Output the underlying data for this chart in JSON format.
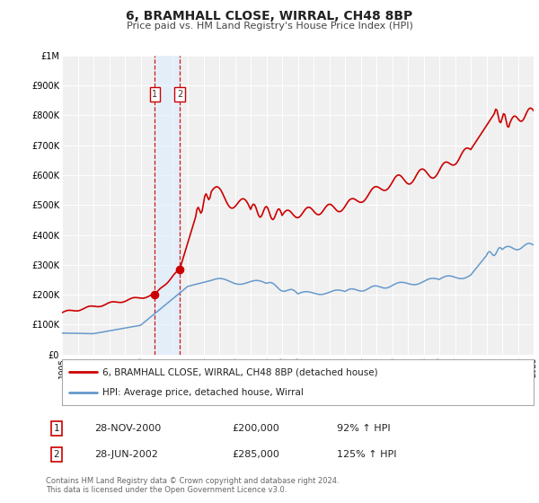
{
  "title": "6, BRAMHALL CLOSE, WIRRAL, CH48 8BP",
  "subtitle": "Price paid vs. HM Land Registry's House Price Index (HPI)",
  "background_color": "#ffffff",
  "plot_bg_color": "#f0f0f0",
  "grid_color": "#ffffff",
  "red_line_color": "#cc0000",
  "blue_line_color": "#6699cc",
  "sale1_date_num": 2000.91,
  "sale1_price": 200000,
  "sale1_label": "28-NOV-2000",
  "sale1_hpi": "92% ↑ HPI",
  "sale2_date_num": 2002.49,
  "sale2_price": 285000,
  "sale2_label": "28-JUN-2002",
  "sale2_hpi": "125% ↑ HPI",
  "xmin": 1995,
  "xmax": 2025,
  "ymin": 0,
  "ymax": 1000000,
  "yticks": [
    0,
    100000,
    200000,
    300000,
    400000,
    500000,
    600000,
    700000,
    800000,
    900000,
    1000000
  ],
  "ytick_labels": [
    "£0",
    "£100K",
    "£200K",
    "£300K",
    "£400K",
    "£500K",
    "£600K",
    "£700K",
    "£800K",
    "£900K",
    "£1M"
  ],
  "xticks": [
    1995,
    1996,
    1997,
    1998,
    1999,
    2000,
    2001,
    2002,
    2003,
    2004,
    2005,
    2006,
    2007,
    2008,
    2009,
    2010,
    2011,
    2012,
    2013,
    2014,
    2015,
    2016,
    2017,
    2018,
    2019,
    2020,
    2021,
    2022,
    2023,
    2024,
    2025
  ],
  "legend_line1": "6, BRAMHALL CLOSE, WIRRAL, CH48 8BP (detached house)",
  "legend_line2": "HPI: Average price, detached house, Wirral",
  "footer": "Contains HM Land Registry data © Crown copyright and database right 2024.\nThis data is licensed under the Open Government Licence v3.0.",
  "shade_color": "#ddeeff",
  "shade_alpha": 0.6
}
